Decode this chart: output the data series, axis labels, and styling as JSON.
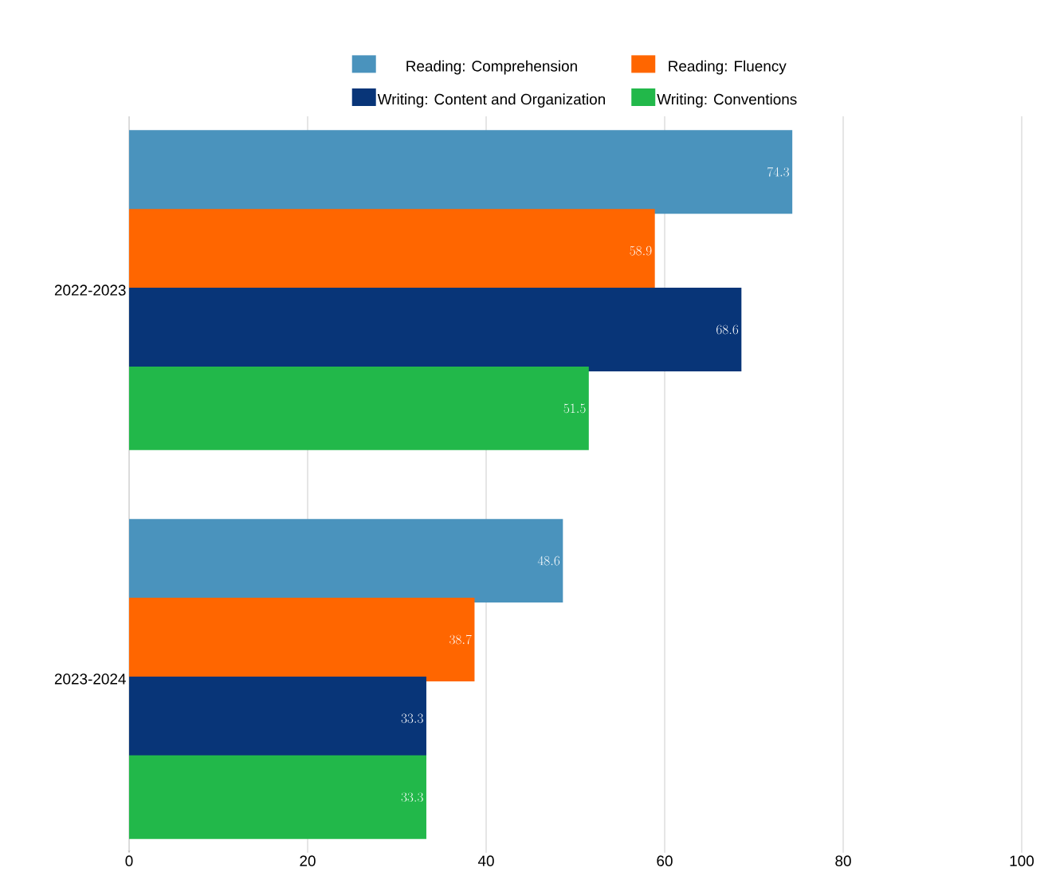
{
  "chart_data": {
    "type": "bar",
    "orientation": "horizontal",
    "categories": [
      "2022-2023",
      "2023-2024"
    ],
    "series": [
      {
        "name": "Reading: Comprehension",
        "color": "#4a93bd",
        "values": [
          74.3,
          48.6
        ]
      },
      {
        "name": "Reading: Fluency",
        "color": "#ff6600",
        "values": [
          58.9,
          38.7
        ]
      },
      {
        "name": "Writing: Content and Organization",
        "color": "#083578",
        "values": [
          68.6,
          33.3
        ]
      },
      {
        "name": "Writing: Conventions",
        "color": "#22b84a",
        "values": [
          51.5,
          33.3
        ]
      }
    ],
    "xlim": [
      0,
      100
    ],
    "xticks": [
      0,
      20,
      40,
      60,
      80,
      100
    ],
    "grid": "x",
    "legend": "top",
    "data_labels": true
  }
}
